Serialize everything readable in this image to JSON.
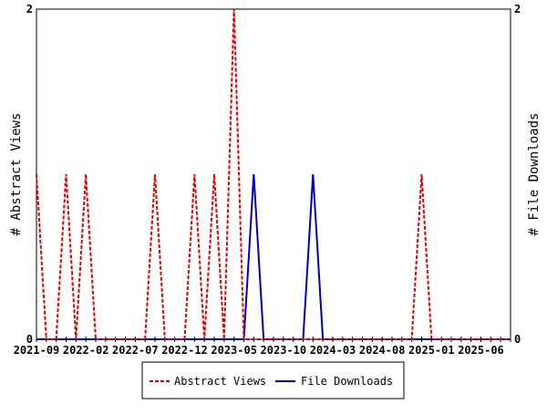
{
  "chart_data": {
    "type": "line",
    "x": [
      "2021-09",
      "2021-10",
      "2021-11",
      "2021-12",
      "2022-01",
      "2022-02",
      "2022-03",
      "2022-04",
      "2022-05",
      "2022-06",
      "2022-07",
      "2022-08",
      "2022-09",
      "2022-10",
      "2022-11",
      "2022-12",
      "2023-01",
      "2023-02",
      "2023-03",
      "2023-04",
      "2023-05",
      "2023-06",
      "2023-07",
      "2023-08",
      "2023-09",
      "2023-10",
      "2023-11",
      "2023-12",
      "2024-01",
      "2024-02",
      "2024-03",
      "2024-04",
      "2024-05",
      "2024-06",
      "2024-07",
      "2024-08",
      "2024-09",
      "2024-10",
      "2024-11",
      "2024-12",
      "2025-01",
      "2025-02",
      "2025-03",
      "2025-04",
      "2025-05",
      "2025-06",
      "2025-07",
      "2025-08",
      "2025-09"
    ],
    "x_tick_labels": [
      "2021-09",
      "2022-02",
      "2022-07",
      "2022-12",
      "2023-05",
      "2023-10",
      "2024-03",
      "2024-08",
      "2025-01",
      "2025-06"
    ],
    "series": [
      {
        "name": "Abstract Views",
        "axis": "left",
        "color": "#dd0000",
        "dash": true,
        "values": [
          1,
          0,
          0,
          1,
          0,
          1,
          0,
          0,
          0,
          0,
          0,
          0,
          1,
          0,
          0,
          0,
          1,
          0,
          1,
          0,
          2,
          0,
          0,
          0,
          0,
          0,
          0,
          0,
          0,
          0,
          0,
          0,
          0,
          0,
          0,
          0,
          0,
          0,
          0,
          1,
          0,
          0,
          0,
          0,
          0,
          0,
          0,
          0,
          0
        ]
      },
      {
        "name": "File Downloads",
        "axis": "right",
        "color": "#0000bb",
        "dash": false,
        "values": [
          0,
          0,
          0,
          0,
          0,
          0,
          0,
          0,
          0,
          0,
          0,
          0,
          0,
          0,
          0,
          0,
          0,
          0,
          0,
          0,
          0,
          0,
          1,
          0,
          0,
          0,
          0,
          0,
          1,
          0,
          0,
          0,
          0,
          0,
          0,
          0,
          0,
          0,
          0,
          0,
          0,
          0,
          0,
          0,
          0,
          0,
          0,
          0,
          0
        ]
      }
    ],
    "ylabel": "# Abstract Views",
    "y2label": "# File Downloads",
    "ylim": [
      0,
      2
    ],
    "y2lim": [
      0,
      2
    ],
    "y_tick_labels": [
      "0",
      "2"
    ],
    "y2_tick_labels": [
      "0",
      "2"
    ],
    "grid": false,
    "legend_position": "bottom-center"
  }
}
